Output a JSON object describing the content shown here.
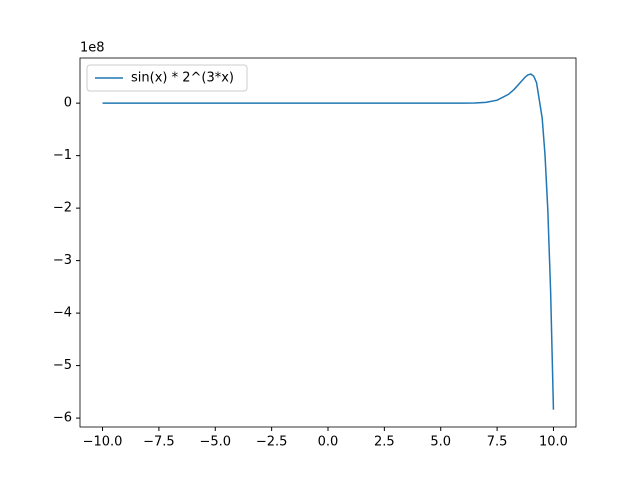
{
  "chart_data": {
    "type": "line",
    "x": [
      -10,
      -7.5,
      -5,
      -2.5,
      0,
      2.5,
      5,
      6,
      6.5,
      7,
      7.5,
      8,
      8.25,
      8.5,
      8.75,
      8.875,
      9,
      9.125,
      9.25,
      9.5,
      9.625,
      9.75,
      9.875,
      10
    ],
    "series": [
      {
        "name": "sin(x) * 2^(3*x)",
        "color": "#1f77b4",
        "values": [
          0,
          0,
          0,
          0,
          0,
          0,
          0,
          0,
          0.0016,
          0.014,
          0.056,
          0.166,
          0.259,
          0.379,
          0.498,
          0.54,
          0.553,
          0.513,
          0.39,
          -0.285,
          -0.984,
          -2.04,
          -3.6,
          -5.84
        ]
      }
    ],
    "y_offset_label": "1e8",
    "xlim": [
      -11,
      11
    ],
    "xticks": [
      {
        "value": -10,
        "label": "−10.0"
      },
      {
        "value": -7.5,
        "label": "−7.5"
      },
      {
        "value": -5,
        "label": "−5.0"
      },
      {
        "value": -2.5,
        "label": "−2.5"
      },
      {
        "value": 0,
        "label": "0.0"
      },
      {
        "value": 2.5,
        "label": "2.5"
      },
      {
        "value": 5,
        "label": "5.0"
      },
      {
        "value": 7.5,
        "label": "7.5"
      },
      {
        "value": 10,
        "label": "10.0"
      }
    ],
    "ylim": [
      -6.17,
      0.86
    ],
    "yticks": [
      {
        "value": -6,
        "label": "−6"
      },
      {
        "value": -5,
        "label": "−5"
      },
      {
        "value": -4,
        "label": "−4"
      },
      {
        "value": -3,
        "label": "−3"
      },
      {
        "value": -2,
        "label": "−2"
      },
      {
        "value": -1,
        "label": "−1"
      },
      0
    ],
    "legend": "upper left",
    "grid": false
  }
}
